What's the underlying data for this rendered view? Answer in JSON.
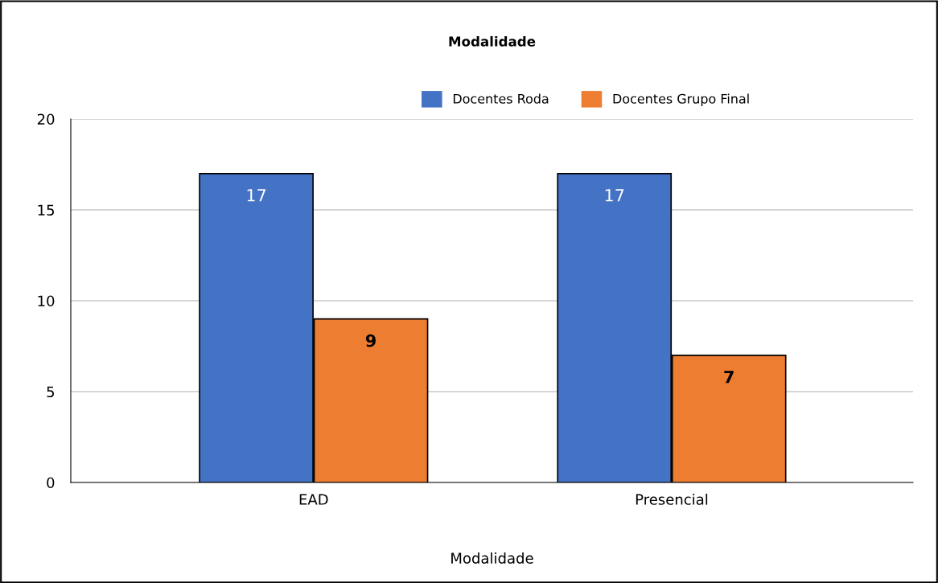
{
  "chart_data": {
    "type": "bar",
    "title": "Modalidade",
    "xlabel": "Modalidade",
    "categories": [
      "EAD",
      "Presencial"
    ],
    "series": [
      {
        "name": "Docentes Roda",
        "color": "#4472c4",
        "values": [
          17,
          17
        ]
      },
      {
        "name": "Docentes Grupo Final",
        "color": "#ed7d31",
        "values": [
          9,
          7
        ]
      }
    ],
    "ylim": [
      0,
      20
    ],
    "yticks": [
      0,
      5,
      10,
      15,
      20
    ],
    "grid": "y",
    "legend": "top right",
    "data_labels": true
  }
}
